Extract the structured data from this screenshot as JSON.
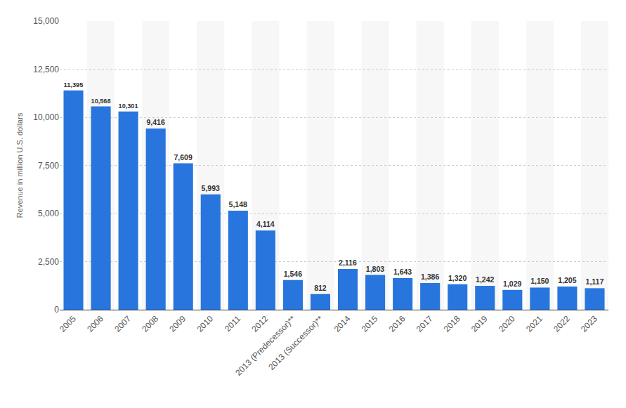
{
  "chart_data": {
    "type": "bar",
    "ylabel": "Revenue in million U.S. dollars",
    "categories": [
      "2005",
      "2006",
      "2007",
      "2008",
      "2009",
      "2010",
      "2011",
      "2012",
      "2013 (Predecessor)**",
      "2013 (Successor)**",
      "2014",
      "2015",
      "2016",
      "2017",
      "2018",
      "2019",
      "2020",
      "2021",
      "2022",
      "2023"
    ],
    "values": [
      11395,
      10568,
      10301,
      9416,
      7609,
      5993,
      5148,
      4114,
      1546,
      812,
      2116,
      1803,
      1643,
      1386,
      1320,
      1242,
      1029,
      1150,
      1205,
      1117
    ],
    "value_labels": [
      "11,395",
      "10,568",
      "10,301",
      "9,416",
      "7,609",
      "5,993",
      "5,148",
      "4,114",
      "1,546",
      "812",
      "2,116",
      "1,803",
      "1,643",
      "1,386",
      "1,320",
      "1,242",
      "1,029",
      "1,150",
      "1,205",
      "1,117"
    ],
    "color": "#2876dd",
    "ylim": [
      0,
      15000
    ],
    "yticks": [
      0,
      {
        "value": 2500,
        "label": "2,500"
      },
      {
        "value": 5000,
        "label": "5,000"
      },
      {
        "value": 7500,
        "label": "7,500"
      },
      {
        "value": 10000,
        "label": "10,000"
      },
      {
        "value": 12500,
        "label": "12,500"
      },
      {
        "value": 15000,
        "label": "15,000"
      }
    ],
    "grid": true,
    "data_labels": true
  }
}
